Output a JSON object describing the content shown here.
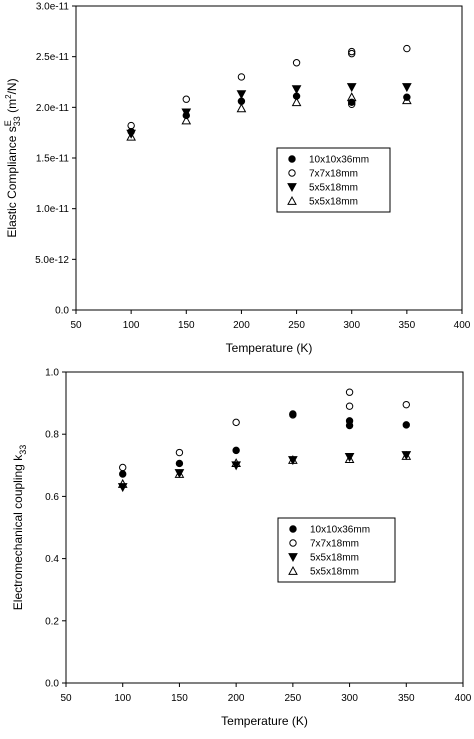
{
  "chart_data": [
    {
      "type": "scatter",
      "title": "",
      "xlabel": "Temperature (K)",
      "ylabel": {
        "main": "Elastic Compliance s",
        "sup": "E",
        "sub": "33",
        "unit": " (m",
        "unit_sup": "2",
        "unit_end": "/N)"
      },
      "xlim": [
        50,
        400
      ],
      "ylim": [
        0,
        3e-11
      ],
      "x_ticks": [
        50,
        100,
        150,
        200,
        250,
        300,
        350,
        400
      ],
      "x_tick_labels": [
        "50",
        "100",
        "150",
        "200",
        "250",
        "300",
        "350",
        "400"
      ],
      "y_ticks": [
        0,
        5e-12,
        1e-11,
        1.5e-11,
        2e-11,
        2.5e-11,
        3e-11
      ],
      "y_tick_labels": [
        "0.0",
        "5.0e-12",
        "1.0e-11",
        "1.5e-11",
        "2.0e-11",
        "2.5e-11",
        "3.0e-11"
      ],
      "grid": false,
      "legend_position": "center-right",
      "series": [
        {
          "name": "10x10x36mm",
          "marker": "circle-filled",
          "x": [
            100,
            150,
            200,
            250,
            300,
            350
          ],
          "y": [
            1.76e-11,
            1.92e-11,
            2.06e-11,
            2.11e-11,
            2.05e-11,
            2.1e-11
          ]
        },
        {
          "name": "7x7x18mm",
          "marker": "circle-open",
          "x": [
            100,
            150,
            200,
            250,
            300,
            300,
            300,
            350
          ],
          "y": [
            1.82e-11,
            2.08e-11,
            2.3e-11,
            2.44e-11,
            2.55e-11,
            2.53e-11,
            2.03e-11,
            2.58e-11
          ]
        },
        {
          "name": "5x5x18mm",
          "marker": "triangle-down-filled",
          "x": [
            100,
            150,
            200,
            250,
            300,
            350
          ],
          "y": [
            1.74e-11,
            1.95e-11,
            2.13e-11,
            2.18e-11,
            2.2e-11,
            2.2e-11
          ]
        },
        {
          "name": "5x5x18mm",
          "marker": "triangle-up-open",
          "x": [
            100,
            150,
            200,
            250,
            300,
            350
          ],
          "y": [
            1.71e-11,
            1.87e-11,
            1.99e-11,
            2.05e-11,
            2.1e-11,
            2.07e-11
          ]
        }
      ]
    },
    {
      "type": "scatter",
      "title": "",
      "xlabel": "Temperature (K)",
      "ylabel": {
        "main": "Electromechanical coupling k",
        "sub": "33"
      },
      "xlim": [
        50,
        400
      ],
      "ylim": [
        0,
        1.0
      ],
      "x_ticks": [
        50,
        100,
        150,
        200,
        250,
        300,
        350,
        400
      ],
      "x_tick_labels": [
        "50",
        "100",
        "150",
        "200",
        "250",
        "300",
        "350",
        "400"
      ],
      "y_ticks": [
        0,
        0.2,
        0.4,
        0.6,
        0.8,
        1.0
      ],
      "y_tick_labels": [
        "0.0",
        "0.2",
        "0.4",
        "0.6",
        "0.8",
        "1.0"
      ],
      "grid": false,
      "legend_position": "center-right",
      "series": [
        {
          "name": "10x10x36mm",
          "marker": "circle-filled",
          "x": [
            100,
            150,
            200,
            250,
            300,
            300,
            350
          ],
          "y": [
            0.672,
            0.706,
            0.748,
            0.865,
            0.843,
            0.828,
            0.83
          ]
        },
        {
          "name": "7x7x18mm",
          "marker": "circle-open",
          "x": [
            100,
            150,
            200,
            250,
            300,
            300,
            350
          ],
          "y": [
            0.693,
            0.741,
            0.838,
            0.862,
            0.935,
            0.89,
            0.895
          ]
        },
        {
          "name": "5x5x18mm",
          "marker": "triangle-down-filled",
          "x": [
            100,
            150,
            200,
            250,
            300,
            350
          ],
          "y": [
            0.63,
            0.675,
            0.7,
            0.717,
            0.727,
            0.733
          ]
        },
        {
          "name": "5x5x18mm",
          "marker": "triangle-up-open",
          "x": [
            100,
            150,
            200,
            250,
            300,
            350
          ],
          "y": [
            0.64,
            0.672,
            0.707,
            0.717,
            0.72,
            0.73
          ]
        }
      ]
    }
  ]
}
